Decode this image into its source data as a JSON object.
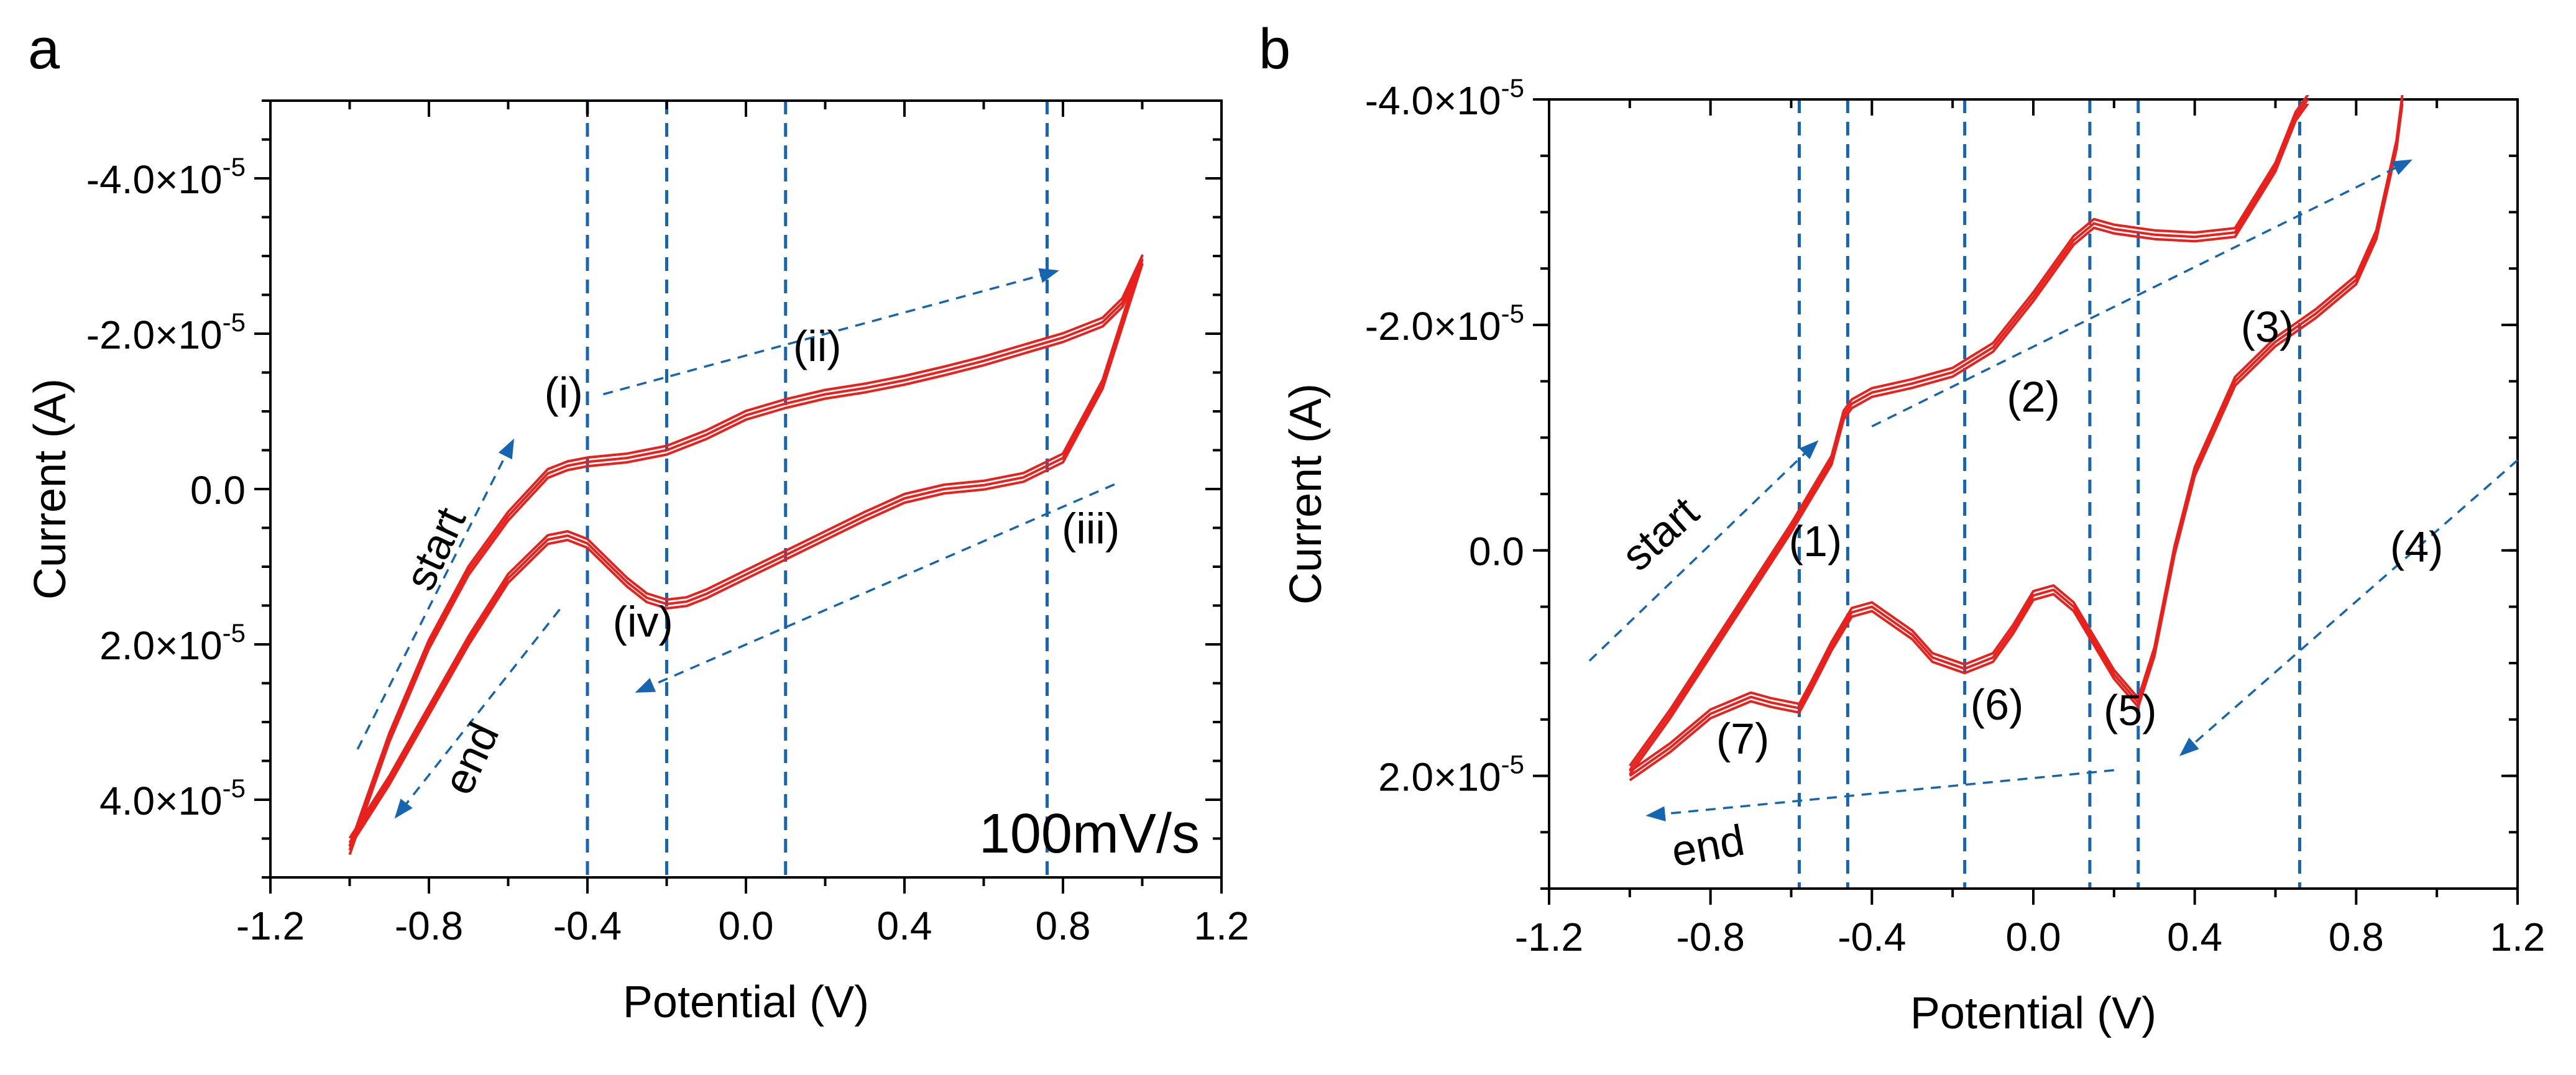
{
  "colors": {
    "curve": "#e8211d",
    "guide": "#1565b0",
    "text": "#000000"
  },
  "chart_data": [
    {
      "panel": "a",
      "type": "line",
      "xlabel": "Potential (V)",
      "ylabel": "Current (A)",
      "xlim": [
        -1.2,
        1.2
      ],
      "ylim": [
        5e-05,
        -5e-05
      ],
      "xticks": [
        -1.2,
        -0.8,
        -0.4,
        0.0,
        0.4,
        0.8,
        1.2
      ],
      "xtick_labels": [
        "-1.2",
        "-0.8",
        "-0.4",
        "0.0",
        "0.4",
        "0.8",
        "1.2"
      ],
      "yticks": [
        -4e-05,
        -2e-05,
        0.0,
        2e-05,
        4e-05
      ],
      "ytick_labels": [
        "-4.0×10",
        "-2.0×10",
        "0.0",
        "2.0×10",
        "4.0×10"
      ],
      "ytick_exponents": [
        "-5",
        "-5",
        "",
        "-5",
        "-5"
      ],
      "scan_rate_label": "100mV/s",
      "vlines": [
        -0.4,
        -0.2,
        0.1,
        0.76
      ],
      "annotations": [
        {
          "text": "(i)",
          "x": -0.46,
          "y": -1.05e-05
        },
        {
          "text": "(ii)",
          "x": 0.18,
          "y": -1.65e-05
        },
        {
          "text": "(iii)",
          "x": 0.87,
          "y": 7e-06
        },
        {
          "text": "(iv)",
          "x": -0.26,
          "y": 1.9e-05
        },
        {
          "text": "start",
          "x": -0.75,
          "y": 8.5e-06,
          "rotate": -65
        },
        {
          "text": "end",
          "x": -0.66,
          "y": 3.55e-05,
          "rotate": -65
        }
      ],
      "arrows": [
        {
          "from": [
            -0.36,
            -1.22e-05
          ],
          "to": [
            0.78,
            -2.8e-05
          ]
        },
        {
          "from": [
            0.93,
            -6e-07
          ],
          "to": [
            -0.27,
            2.6e-05
          ]
        },
        {
          "from": [
            -0.98,
            3.35e-05
          ],
          "to": [
            -0.59,
            -6e-06
          ]
        },
        {
          "from": [
            -0.47,
            1.55e-05
          ],
          "to": [
            -0.88,
            4.2e-05
          ]
        }
      ],
      "series": [
        {
          "forward": {
            "x": [
              -1.0,
              -0.9,
              -0.8,
              -0.7,
              -0.6,
              -0.5,
              -0.45,
              -0.4,
              -0.3,
              -0.2,
              -0.1,
              0.0,
              0.1,
              0.2,
              0.3,
              0.4,
              0.5,
              0.6,
              0.7,
              0.8,
              0.9,
              0.95,
              1.0
            ],
            "y": [
              4.65e-05,
              3.2e-05,
              2e-05,
              1.05e-05,
              3.5e-06,
              -2e-06,
              -3e-06,
              -3.5e-06,
              -4e-06,
              -5e-06,
              -7e-06,
              -9.5e-06,
              -1.1e-05,
              -1.22e-05,
              -1.3e-05,
              -1.4e-05,
              -1.52e-05,
              -1.65e-05,
              -1.8e-05,
              -1.95e-05,
              -2.15e-05,
              -2.4e-05,
              -2.95e-05
            ]
          },
          "reverse": {
            "x": [
              1.0,
              0.9,
              0.8,
              0.7,
              0.6,
              0.5,
              0.4,
              0.3,
              0.2,
              0.1,
              0.0,
              -0.1,
              -0.15,
              -0.2,
              -0.25,
              -0.3,
              -0.35,
              -0.4,
              -0.45,
              -0.5,
              -0.6,
              -0.7,
              -0.8,
              -0.9,
              -1.0
            ],
            "y": [
              -2.95e-05,
              -1.35e-05,
              -4e-06,
              -1.5e-06,
              -5e-07,
              0.0,
              1.2e-06,
              3.5e-06,
              6e-06,
              8.5e-06,
              1.1e-05,
              1.35e-05,
              1.45e-05,
              1.48e-05,
              1.4e-05,
              1.2e-05,
              9.5e-06,
              7e-06,
              6e-06,
              6.5e-06,
              1.15e-05,
              1.95e-05,
              2.85e-05,
              3.75e-05,
              4.55e-05
            ]
          }
        }
      ]
    },
    {
      "panel": "b",
      "type": "line",
      "xlabel": "Potential (V)",
      "ylabel": "Current (A)",
      "xlim": [
        -1.2,
        1.2
      ],
      "ylim": [
        3e-05,
        -4e-05
      ],
      "xticks": [
        -1.2,
        -0.8,
        -0.4,
        0.0,
        0.4,
        0.8,
        1.2
      ],
      "xtick_labels": [
        "-1.2",
        "-0.8",
        "-0.4",
        "0.0",
        "0.4",
        "0.8",
        "1.2"
      ],
      "yticks": [
        -4e-05,
        -2e-05,
        0.0,
        2e-05
      ],
      "ytick_labels": [
        "-4.0×10",
        "-2.0×10",
        "0.0",
        "2.0×10"
      ],
      "ytick_exponents": [
        "-5",
        "-5",
        "",
        "-5"
      ],
      "vlines": [
        -0.58,
        -0.46,
        -0.17,
        0.14,
        0.26,
        0.66
      ],
      "annotations": [
        {
          "text": "(1)",
          "x": -0.54,
          "y": 5e-07
        },
        {
          "text": "(2)",
          "x": 0.0,
          "y": -1.23e-05
        },
        {
          "text": "(3)",
          "x": 0.58,
          "y": -1.85e-05
        },
        {
          "text": "(4)",
          "x": 0.95,
          "y": 1e-06
        },
        {
          "text": "(5)",
          "x": 0.24,
          "y": 1.55e-05
        },
        {
          "text": "(6)",
          "x": -0.09,
          "y": 1.5e-05
        },
        {
          "text": "(7)",
          "x": -0.72,
          "y": 1.8e-05
        },
        {
          "text": "start",
          "x": -0.9,
          "y": -5e-07,
          "rotate": -42
        },
        {
          "text": "end",
          "x": -0.8,
          "y": 2.75e-05,
          "rotate": -10
        }
      ],
      "arrows": [
        {
          "from": [
            -1.1,
            9.8e-06
          ],
          "to": [
            -0.54,
            -9.5e-06
          ]
        },
        {
          "from": [
            -0.4,
            -1.1e-05
          ],
          "to": [
            0.93,
            -3.45e-05
          ]
        },
        {
          "from": [
            1.2,
            -8e-06
          ],
          "to": [
            0.37,
            1.8e-05
          ]
        },
        {
          "from": [
            0.2,
            1.95e-05
          ],
          "to": [
            -0.95,
            2.35e-05
          ]
        }
      ],
      "series": [
        {
          "forward": {
            "x": [
              -1.0,
              -0.9,
              -0.8,
              -0.7,
              -0.6,
              -0.5,
              -0.47,
              -0.45,
              -0.4,
              -0.3,
              -0.2,
              -0.1,
              0.0,
              0.1,
              0.15,
              0.2,
              0.3,
              0.4,
              0.5,
              0.6,
              0.65,
              0.7,
              0.8,
              0.9,
              1.0
            ],
            "y": [
              1.95e-05,
              1.45e-05,
              9e-06,
              3.5e-06,
              -2e-06,
              -8e-06,
              -1.2e-05,
              -1.3e-05,
              -1.4e-05,
              -1.48e-05,
              -1.58e-05,
              -1.8e-05,
              -2.25e-05,
              -2.75e-05,
              -2.9e-05,
              -2.85e-05,
              -2.8e-05,
              -2.78e-05,
              -2.82e-05,
              -3.4e-05,
              -3.85e-05,
              -4.1e-05,
              -4.9e-05,
              -5.7e-05,
              -6.6e-05
            ]
          },
          "reverse": {
            "x": [
              1.0,
              0.95,
              0.9,
              0.85,
              0.8,
              0.7,
              0.6,
              0.5,
              0.4,
              0.35,
              0.3,
              0.26,
              0.2,
              0.15,
              0.1,
              0.05,
              0.0,
              -0.05,
              -0.1,
              -0.17,
              -0.25,
              -0.3,
              -0.4,
              -0.45,
              -0.5,
              -0.55,
              -0.58,
              -0.65,
              -0.7,
              -0.8,
              -0.9,
              -1.0
            ],
            "y": [
              -6.6e-05,
              -5e-05,
              -3.6e-05,
              -2.8e-05,
              -2.4e-05,
              -2.1e-05,
              -1.85e-05,
              -1.5e-05,
              -7e-06,
              0.0,
              9e-06,
              1.35e-05,
              1.1e-05,
              8e-06,
              5e-06,
              3.5e-06,
              4e-06,
              7e-06,
              9.5e-06,
              1.05e-05,
              9.5e-06,
              7.5e-06,
              5e-06,
              5.5e-06,
              8.5e-06,
              1.2e-05,
              1.4e-05,
              1.35e-05,
              1.3e-05,
              1.45e-05,
              1.75e-05,
              2e-05
            ]
          }
        }
      ]
    }
  ]
}
